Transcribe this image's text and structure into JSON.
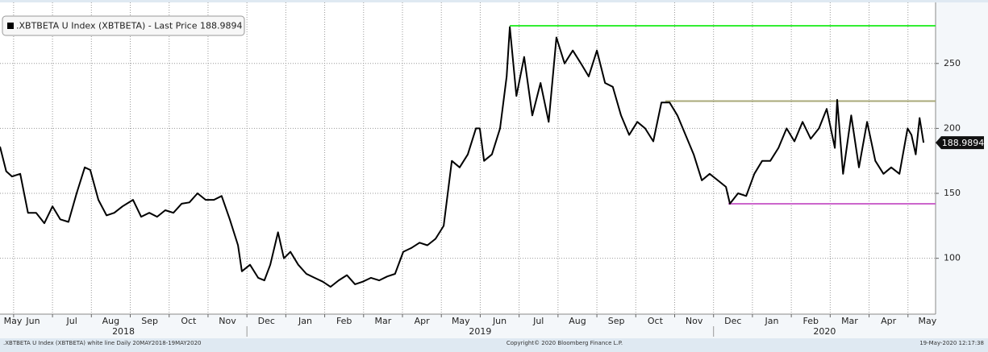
{
  "chart_data": {
    "type": "line",
    "series": [
      {
        "name": ".XBTBETA U Index (XBTBETA) - Last Price 188.9894",
        "color": "#000000",
        "x": [
          -0.35,
          -0.19,
          -0.04,
          0.17,
          0.37,
          0.58,
          0.79,
          1.0,
          1.2,
          1.41,
          1.62,
          1.83,
          1.97,
          2.18,
          2.39,
          2.59,
          2.8,
          3.07,
          3.28,
          3.49,
          3.69,
          3.9,
          4.11,
          4.32,
          4.52,
          4.73,
          4.94,
          5.15,
          5.35,
          5.56,
          5.77,
          5.87,
          6.08,
          6.29,
          6.45,
          6.6,
          6.8,
          6.95,
          7.12,
          7.32,
          7.53,
          7.74,
          7.95,
          8.15,
          8.36,
          8.57,
          8.78,
          8.98,
          9.19,
          9.4,
          9.61,
          9.81,
          10.02,
          10.23,
          10.44,
          10.64,
          10.85,
          11.06,
          11.27,
          11.47,
          11.68,
          11.89,
          11.99,
          12.1,
          12.3,
          12.51,
          12.68,
          12.76,
          12.93,
          13.13,
          13.34,
          13.55,
          13.76,
          13.96,
          14.17,
          14.38,
          14.59,
          14.79,
          15.0,
          15.21,
          15.41,
          15.62,
          15.83,
          16.04,
          16.24,
          16.45,
          16.66,
          16.87,
          17.07,
          17.28,
          17.49,
          17.7,
          17.9,
          18.11,
          18.32,
          18.42,
          18.63,
          18.84,
          19.05,
          19.25,
          19.46,
          19.67,
          19.88,
          20.08,
          20.29,
          20.5,
          20.71,
          20.91,
          21.12,
          21.18,
          21.33,
          21.54,
          21.74,
          21.95,
          22.16,
          22.37,
          22.57,
          22.78,
          22.99,
          23.09,
          23.2,
          23.3,
          23.4
        ],
        "values": [
          186,
          167,
          163,
          165,
          135,
          135,
          127,
          140,
          130,
          128,
          150,
          170,
          168,
          145,
          133,
          135,
          140,
          145,
          132,
          135,
          132,
          137,
          135,
          142,
          143,
          150,
          145,
          145,
          148,
          130,
          110,
          90,
          95,
          85,
          83,
          95,
          120,
          100,
          105,
          95,
          88,
          85,
          82,
          78,
          83,
          87,
          80,
          82,
          85,
          83,
          86,
          88,
          105,
          108,
          112,
          110,
          115,
          125,
          175,
          170,
          180,
          200,
          200,
          175,
          180,
          200,
          240,
          278,
          225,
          255,
          210,
          235,
          205,
          270,
          250,
          260,
          250,
          240,
          260,
          235,
          232,
          210,
          195,
          205,
          200,
          190,
          220,
          220,
          210,
          195,
          180,
          160,
          165,
          160,
          155,
          142,
          150,
          148,
          165,
          175,
          175,
          185,
          200,
          190,
          205,
          192,
          200,
          215,
          185,
          222,
          165,
          210,
          170,
          205,
          175,
          165,
          170,
          165,
          200,
          195,
          180,
          208,
          189
        ]
      }
    ],
    "last_price": {
      "value": 188.9894,
      "label": "188.9894"
    },
    "reference_lines": [
      {
        "value": 279,
        "color": "#33ee33",
        "x_start": 12.76
      },
      {
        "value": 221,
        "color": "#a8a878",
        "x_start": 16.76
      },
      {
        "value": 142,
        "color": "#cc66cc",
        "x_start": 18.38
      }
    ],
    "xlim": [
      -0.35,
      23.71
    ],
    "xticks": [
      {
        "value": -1,
        "label": "May"
      },
      {
        "value": 0,
        "label": "Jun"
      },
      {
        "value": 1,
        "label": "Jul"
      },
      {
        "value": 2,
        "label": "Aug"
      },
      {
        "value": 3,
        "label": "Sep"
      },
      {
        "value": 4,
        "label": "Oct"
      },
      {
        "value": 5,
        "label": "Nov"
      },
      {
        "value": 6,
        "label": "Dec"
      },
      {
        "value": 7,
        "label": "Jan"
      },
      {
        "value": 8,
        "label": "Feb"
      },
      {
        "value": 9,
        "label": "Mar"
      },
      {
        "value": 10,
        "label": "Apr"
      },
      {
        "value": 11,
        "label": "May"
      },
      {
        "value": 12,
        "label": "Jun"
      },
      {
        "value": 13,
        "label": "Jul"
      },
      {
        "value": 14,
        "label": "Aug"
      },
      {
        "value": 15,
        "label": "Sep"
      },
      {
        "value": 16,
        "label": "Oct"
      },
      {
        "value": 17,
        "label": "Nov"
      },
      {
        "value": 18,
        "label": "Dec"
      },
      {
        "value": 19,
        "label": "Jan"
      },
      {
        "value": 20,
        "label": "Feb"
      },
      {
        "value": 21,
        "label": "Mar"
      },
      {
        "value": 22,
        "label": "Apr"
      },
      {
        "value": 23,
        "label": "May"
      }
    ],
    "year_labels": [
      "2018",
      "2019",
      "2020"
    ],
    "ylim": [
      57,
      297
    ],
    "yticks": [
      100,
      150,
      200,
      250
    ],
    "grid": true,
    "footer_left": ".XBTBETA U Index (XBTBETA) white line  Daily 20MAY2018-19MAY2020",
    "footer_center": "Copyright© 2020 Bloomberg Finance L.P.",
    "footer_right": "19-May-2020 12:17:38"
  }
}
